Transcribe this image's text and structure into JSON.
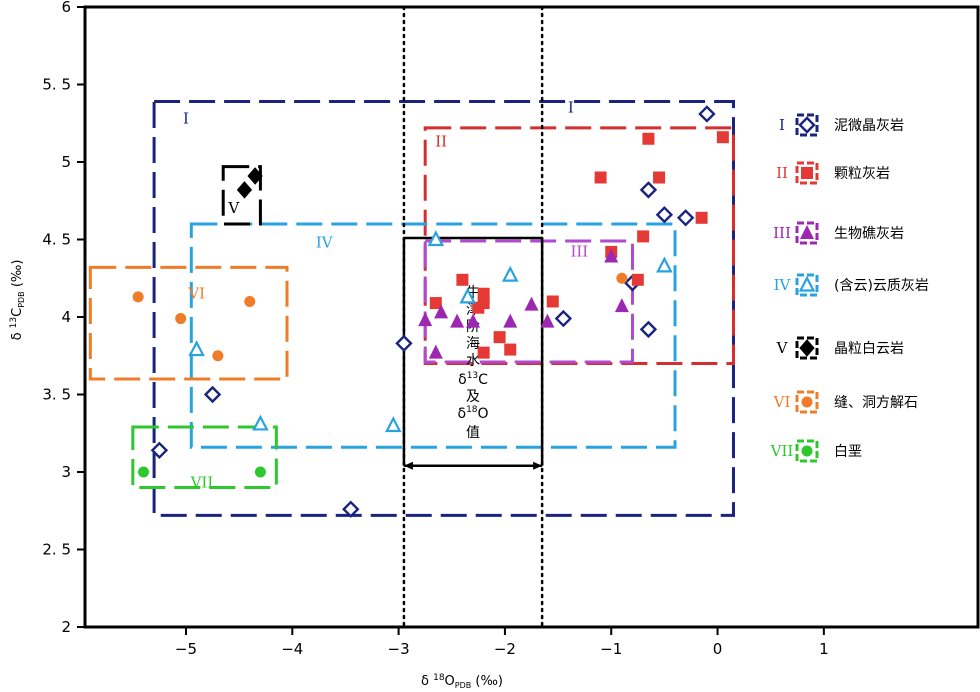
{
  "chart_data": {
    "type": "scatter",
    "title": "",
    "xlabel": "δ 18O",
    "xlabel_sub": "PDB",
    "xlabel_unit": "(‰)",
    "ylabel": "δ 13C",
    "ylabel_sub": "PDB",
    "ylabel_unit": "(‰)",
    "xlim": [
      -5.95,
      2.45
    ],
    "ylim": [
      2,
      6
    ],
    "x_ticks": [
      -5,
      -4,
      -3,
      -2,
      -1,
      0,
      1
    ],
    "x_tick_labels": [
      "−5",
      "−4",
      "−3",
      "−2",
      "−1",
      "0",
      "1"
    ],
    "y_ticks": [
      2,
      2.5,
      3,
      3.5,
      4,
      4.5,
      5,
      5.5,
      6
    ],
    "y_tick_labels": [
      "2",
      "2. 5",
      "3",
      "3. 5",
      "4",
      "4. 5",
      "5",
      "5. 5",
      "6"
    ],
    "grid": false,
    "series": [
      {
        "id": "I",
        "roman": "I",
        "name": "泥微晶灰岩",
        "marker": "diamond-open",
        "color": "#1a237e",
        "points": [
          [
            -0.1,
            5.31
          ],
          [
            -0.65,
            4.82
          ],
          [
            -0.5,
            4.66
          ],
          [
            -0.3,
            4.64
          ],
          [
            -0.8,
            4.22
          ],
          [
            -1.45,
            3.99
          ],
          [
            -0.65,
            3.92
          ],
          [
            -2.95,
            3.83
          ],
          [
            -4.75,
            3.5
          ],
          [
            -5.25,
            3.14
          ],
          [
            -3.45,
            2.76
          ]
        ]
      },
      {
        "id": "II",
        "roman": "II",
        "name": "颗粒灰岩",
        "marker": "square",
        "color": "#e53935",
        "points": [
          [
            0.05,
            5.16
          ],
          [
            -0.65,
            5.15
          ],
          [
            -0.55,
            4.9
          ],
          [
            -1.1,
            4.9
          ],
          [
            -0.15,
            4.64
          ],
          [
            -0.7,
            4.52
          ],
          [
            -1.0,
            4.42
          ],
          [
            -0.75,
            4.24
          ],
          [
            -2.4,
            4.24
          ],
          [
            -2.2,
            4.15
          ],
          [
            -2.2,
            4.09
          ],
          [
            -2.25,
            4.06
          ],
          [
            -1.55,
            4.1
          ],
          [
            -2.65,
            4.09
          ],
          [
            -2.05,
            3.87
          ],
          [
            -1.95,
            3.79
          ],
          [
            -2.2,
            3.77
          ]
        ]
      },
      {
        "id": "III",
        "roman": "III",
        "name": "生物礁灰岩",
        "marker": "triangle",
        "color": "#9c27b0",
        "points": [
          [
            -1.0,
            4.39
          ],
          [
            -0.9,
            4.07
          ],
          [
            -1.75,
            4.08
          ],
          [
            -2.6,
            4.03
          ],
          [
            -2.75,
            3.98
          ],
          [
            -2.45,
            3.97
          ],
          [
            -2.3,
            3.97
          ],
          [
            -1.95,
            3.97
          ],
          [
            -1.6,
            3.97
          ],
          [
            -2.65,
            3.77
          ]
        ]
      },
      {
        "id": "IV",
        "roman": "IV",
        "name": "(含云)云质灰岩",
        "marker": "triangle-open",
        "color": "#29a3e0",
        "points": [
          [
            -2.65,
            4.5
          ],
          [
            -1.95,
            4.27
          ],
          [
            -0.5,
            4.33
          ],
          [
            -2.35,
            4.13
          ],
          [
            -4.9,
            3.79
          ],
          [
            -4.3,
            3.31
          ],
          [
            -3.05,
            3.3
          ]
        ]
      },
      {
        "id": "V",
        "roman": "V",
        "name": "晶粒白云岩",
        "marker": "diamond",
        "color": "#000000",
        "points": [
          [
            -4.35,
            4.91
          ],
          [
            -4.45,
            4.82
          ]
        ]
      },
      {
        "id": "VI",
        "roman": "VI",
        "name": "缝、洞方解石",
        "marker": "circle",
        "color": "#f07c28",
        "points": [
          [
            -5.45,
            4.13
          ],
          [
            -4.4,
            4.1
          ],
          [
            -5.05,
            3.99
          ],
          [
            -4.7,
            3.75
          ],
          [
            -0.9,
            4.25
          ]
        ]
      },
      {
        "id": "VII",
        "roman": "VII",
        "name": "白垩",
        "marker": "circle",
        "color": "#2ec82e",
        "points": [
          [
            -5.4,
            3.0
          ],
          [
            -4.3,
            3.0
          ]
        ]
      }
    ],
    "regions": [
      {
        "label": "I",
        "color": "#1a237e",
        "x": [
          -5.3,
          0.15
        ],
        "y": [
          2.72,
          5.39
        ],
        "label_at": [
          -5.0,
          5.25
        ]
      },
      {
        "label": "I",
        "color": "#1a237e",
        "label_at": [
          -1.38,
          5.32
        ]
      },
      {
        "label": "II",
        "color": "#d32f2f",
        "x": [
          -2.75,
          0.15
        ],
        "y": [
          3.7,
          5.22
        ],
        "label_at": [
          -2.6,
          5.1
        ]
      },
      {
        "label": "III",
        "color": "#b04ad0",
        "x": [
          -2.75,
          -0.8
        ],
        "y": [
          3.71,
          4.49
        ],
        "label_at": [
          -1.3,
          4.39
        ]
      },
      {
        "label": "IV",
        "color": "#29a3e0",
        "x": [
          -4.95,
          -0.4
        ],
        "y": [
          3.16,
          4.6
        ],
        "label_at": [
          -3.7,
          4.45
        ]
      },
      {
        "label": "V",
        "color": "#000000",
        "x": [
          -4.65,
          -4.3
        ],
        "y": [
          4.6,
          4.97
        ],
        "label_at": [
          -4.55,
          4.67
        ]
      },
      {
        "label": "VI",
        "color": "#f07c28",
        "x": [
          -5.9,
          -4.05
        ],
        "y": [
          3.6,
          4.32
        ],
        "label_at": [
          -4.9,
          4.12
        ]
      },
      {
        "label": "VII",
        "color": "#2ec82e",
        "x": [
          -5.5,
          -4.15
        ],
        "y": [
          2.9,
          3.29
        ],
        "label_at": [
          -4.85,
          2.9
        ]
      }
    ],
    "reference_lines": [
      {
        "axis": "x",
        "value": -2.95,
        "style": "dotted"
      },
      {
        "axis": "x",
        "value": -1.65,
        "style": "dotted"
      }
    ],
    "annotation": {
      "x_range": [
        -2.95,
        -1.65
      ],
      "y_range": [
        3.04,
        4.51
      ],
      "text_lines": [
        "牛",
        "津",
        "阶",
        "海",
        "水",
        "δ 13C",
        "及",
        "δ 18O",
        "值"
      ]
    },
    "legend": {
      "placement": "right",
      "entries": [
        {
          "roman": "I",
          "label": "泥微晶灰岩"
        },
        {
          "roman": "II",
          "label": "颗粒灰岩"
        },
        {
          "roman": "III",
          "label": "生物礁灰岩"
        },
        {
          "roman": "IV",
          "label": "(含云)云质灰岩"
        },
        {
          "roman": "V",
          "label": "晶粒白云岩"
        },
        {
          "roman": "VI",
          "label": "缝、洞方解石"
        },
        {
          "roman": "VII",
          "label": "白垩"
        }
      ]
    }
  }
}
